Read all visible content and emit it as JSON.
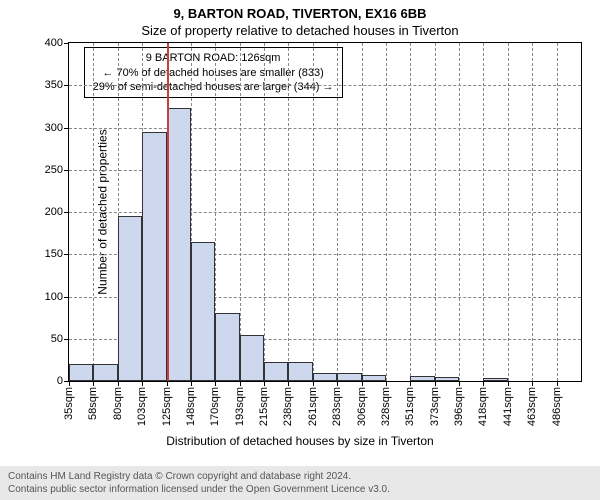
{
  "header": {
    "address": "9, BARTON ROAD, TIVERTON, EX16 6BB",
    "subtitle": "Size of property relative to detached houses in Tiverton"
  },
  "chart": {
    "type": "histogram",
    "y_axis": {
      "label": "Number of detached properties",
      "min": 0,
      "max": 400,
      "ticks": [
        0,
        50,
        100,
        150,
        200,
        250,
        300,
        350,
        400
      ],
      "label_fontsize": 12,
      "tick_fontsize": 11
    },
    "x_axis": {
      "label": "Distribution of detached houses by size in Tiverton",
      "categories": [
        "35sqm",
        "58sqm",
        "80sqm",
        "103sqm",
        "125sqm",
        "148sqm",
        "170sqm",
        "193sqm",
        "215sqm",
        "238sqm",
        "261sqm",
        "283sqm",
        "306sqm",
        "328sqm",
        "351sqm",
        "373sqm",
        "396sqm",
        "418sqm",
        "441sqm",
        "463sqm",
        "486sqm"
      ],
      "label_fontsize": 12,
      "tick_fontsize": 11
    },
    "bars": {
      "values": [
        20,
        20,
        195,
        295,
        323,
        165,
        80,
        55,
        22,
        22,
        10,
        10,
        7,
        0,
        6,
        5,
        0,
        4,
        0,
        0,
        0
      ],
      "fill_color": "#cdd7ed",
      "border_color": "#333333",
      "bar_width_ratio": 1.0
    },
    "highlight": {
      "position_index": 4,
      "fraction_into_bin": 0.04,
      "color": "#c44040",
      "line_width": 2
    },
    "grid": {
      "color": "#888888",
      "style": "dashed"
    },
    "annotation": {
      "lines": [
        "9 BARTON ROAD: 126sqm",
        "← 70% of detached houses are smaller (833)",
        "29% of semi-detached houses are larger (344) →"
      ],
      "box_left_category_index": 0.6,
      "box_top_value": 395,
      "fontsize": 11,
      "background": "#ffffff",
      "border_color": "#000000"
    },
    "background_color": "#ffffff"
  },
  "footer": {
    "line1": "Contains HM Land Registry data © Crown copyright and database right 2024.",
    "line2": "Contains public sector information licensed under the Open Government Licence v3.0.",
    "background": "#e8e8e8",
    "color": "#555555",
    "fontsize": 10
  }
}
